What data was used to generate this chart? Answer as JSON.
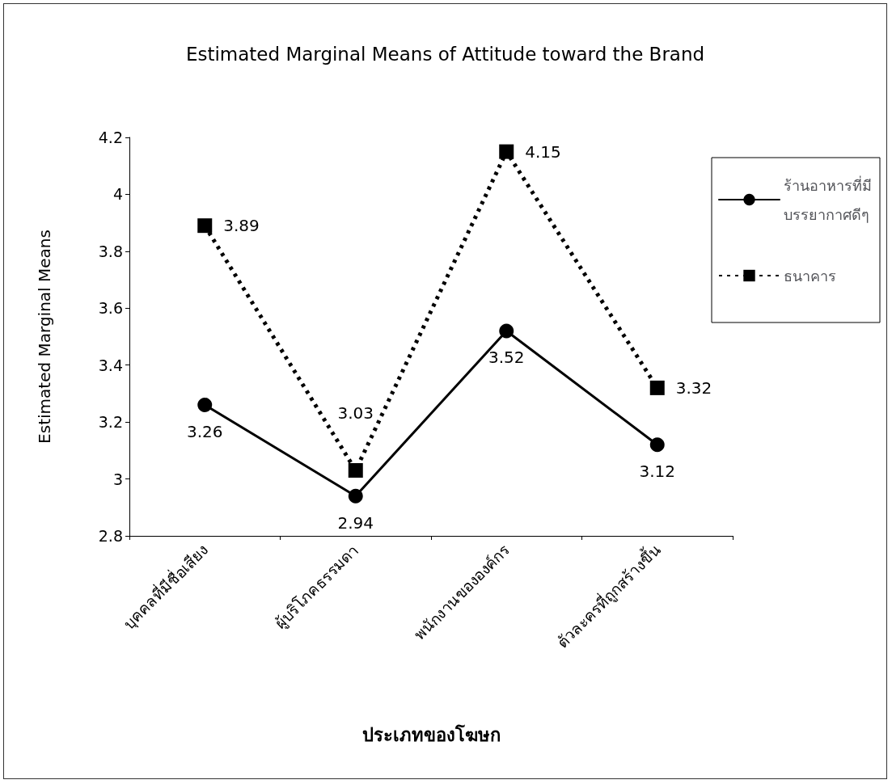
{
  "chart_data": {
    "type": "line",
    "title": "Estimated Marginal Means of Attitude toward the Brand",
    "xlabel": "ประเภทของโฆษก",
    "ylabel": "Estimated Marginal Means",
    "categories": [
      "บุคคลที่มีชื่อเสียง",
      "ผู้บริโภคธรรมดา",
      "พนักงานขององค์กร",
      "ตัวละครที่ถูกสร้างขึ้น"
    ],
    "series": [
      {
        "name": "ร้านอาหารที่มี\nบรรยากาศดีๆ",
        "color": "#000000",
        "values": [
          3.26,
          2.94,
          3.52,
          3.12
        ],
        "marker": "circle",
        "line_style": "solid"
      },
      {
        "name": "ธนาคาร",
        "color": "#000000",
        "values": [
          3.89,
          3.03,
          4.15,
          3.32
        ],
        "marker": "square",
        "line_style": "dotted"
      }
    ],
    "ylim": [
      2.8,
      4.2
    ],
    "yticks": [
      2.8,
      3,
      3.2,
      3.4,
      3.6,
      3.8,
      4,
      4.2
    ],
    "grid": false,
    "legend": "right",
    "data_labels": true
  }
}
